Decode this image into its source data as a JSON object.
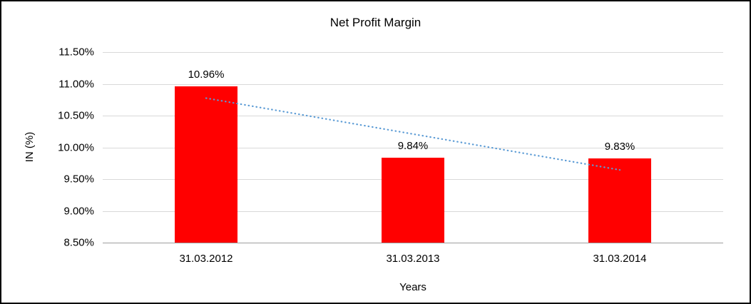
{
  "chart_data": {
    "type": "bar",
    "title": "Net Profit Margin",
    "xlabel": "Years",
    "ylabel": "IN (%)",
    "categories": [
      "31.03.2012",
      "31.03.2013",
      "31.03.2014"
    ],
    "values": [
      10.96,
      9.84,
      9.83
    ],
    "data_labels": [
      "10.96%",
      "9.84%",
      "9.83%"
    ],
    "ylim": [
      8.5,
      11.5
    ],
    "ytick_values": [
      8.5,
      9.0,
      9.5,
      10.0,
      10.5,
      11.0,
      11.5
    ],
    "ytick_labels": [
      "8.50%",
      "9.00%",
      "9.50%",
      "10.00%",
      "10.50%",
      "11.00%",
      "11.50%"
    ],
    "grid": true,
    "legend_position": "none",
    "bar_color": "#ff0000",
    "gridline_color": "#d9d9d9",
    "trendline": {
      "type": "linear",
      "style": "dotted",
      "color": "#5b9bd5",
      "start_value": 10.775,
      "end_value": 9.645
    }
  }
}
